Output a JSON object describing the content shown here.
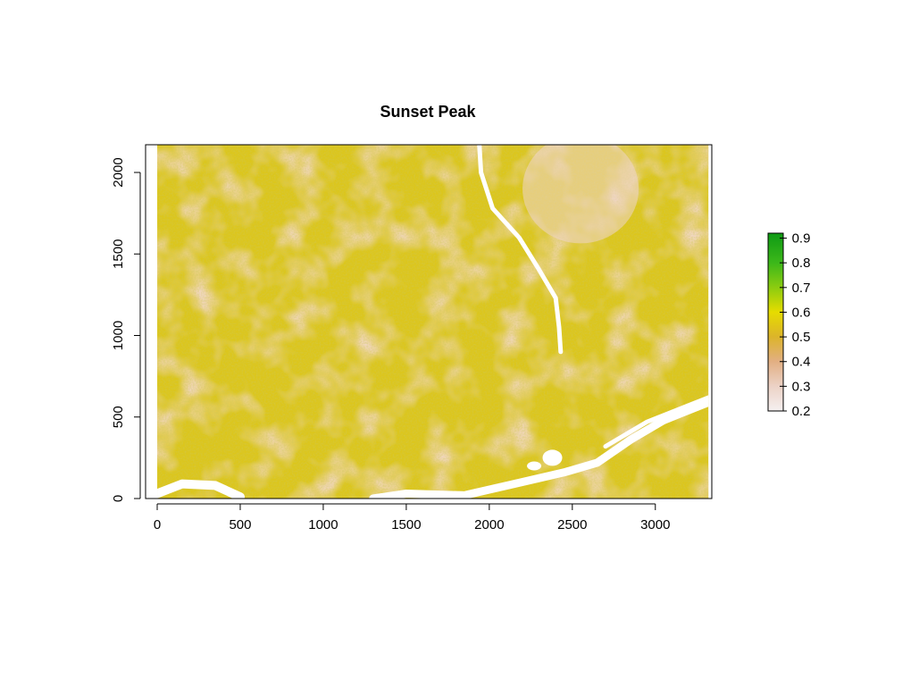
{
  "chart_data": {
    "type": "heatmap",
    "title": "Sunset Peak",
    "xlabel": "",
    "ylabel": "",
    "xlim": [
      -70,
      3340
    ],
    "ylim": [
      0,
      2170
    ],
    "x_ticks": [
      0,
      500,
      1000,
      1500,
      2000,
      2500,
      3000
    ],
    "y_ticks": [
      0,
      500,
      1000,
      1500,
      2000
    ],
    "raster_extent": {
      "x": [
        0,
        3320
      ],
      "y": [
        0,
        2170
      ]
    },
    "legend": {
      "placement": "right",
      "range": [
        0.2,
        0.92
      ],
      "ticks": [
        0.2,
        0.3,
        0.4,
        0.5,
        0.6,
        0.7,
        0.8,
        0.9
      ],
      "color_stops": [
        {
          "value": 0.2,
          "color": "#f5f0f0"
        },
        {
          "value": 0.3,
          "color": "#ecd2c6"
        },
        {
          "value": 0.4,
          "color": "#e2af83"
        },
        {
          "value": 0.5,
          "color": "#dcb42a"
        },
        {
          "value": 0.6,
          "color": "#e6dc00"
        },
        {
          "value": 0.7,
          "color": "#8ccc10"
        },
        {
          "value": 0.8,
          "color": "#3cb81a"
        },
        {
          "value": 0.92,
          "color": "#0e9a14"
        }
      ]
    },
    "features": {
      "no_data_river": "white channel in data units",
      "river_path": [
        [
          1940,
          2170
        ],
        [
          1950,
          2000
        ],
        [
          2020,
          1780
        ],
        [
          2180,
          1600
        ],
        [
          2290,
          1420
        ],
        [
          2400,
          1230
        ],
        [
          2420,
          1050
        ],
        [
          2430,
          900
        ]
      ],
      "lower_river_path": [
        [
          1300,
          0
        ],
        [
          1500,
          30
        ],
        [
          1850,
          20
        ],
        [
          2150,
          90
        ],
        [
          2450,
          160
        ],
        [
          2650,
          220
        ],
        [
          2850,
          360
        ],
        [
          3050,
          480
        ],
        [
          3320,
          590
        ]
      ],
      "lower_river_branch": [
        [
          2700,
          320
        ],
        [
          2950,
          470
        ],
        [
          3320,
          620
        ]
      ],
      "left_water_path": [
        [
          0,
          30
        ],
        [
          150,
          90
        ],
        [
          350,
          80
        ],
        [
          500,
          10
        ]
      ],
      "lake": [
        2380,
        250
      ]
    }
  }
}
